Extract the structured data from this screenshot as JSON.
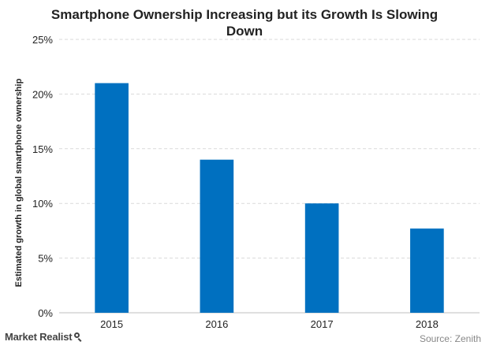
{
  "chart_data": {
    "type": "bar",
    "title_lines": [
      "Smartphone Ownership Increasing but its Growth Is Slowing",
      "Down"
    ],
    "ylabel": "Estimated growth in global smartphone ownership",
    "xlabel": "",
    "categories": [
      "2015",
      "2016",
      "2017",
      "2018"
    ],
    "values": [
      21,
      14,
      10,
      7.7
    ],
    "unit": "%",
    "ylim": [
      0,
      25
    ],
    "yticks": [
      0,
      5,
      10,
      15,
      20,
      25
    ],
    "ytick_labels": [
      "0%",
      "5%",
      "10%",
      "15%",
      "20%",
      "25%"
    ],
    "grid": true,
    "bar_color": "#0070C0",
    "grid_color": "#d9d9d9"
  },
  "footer": {
    "brand": "Market Realist",
    "source": "Source: Zenith"
  }
}
